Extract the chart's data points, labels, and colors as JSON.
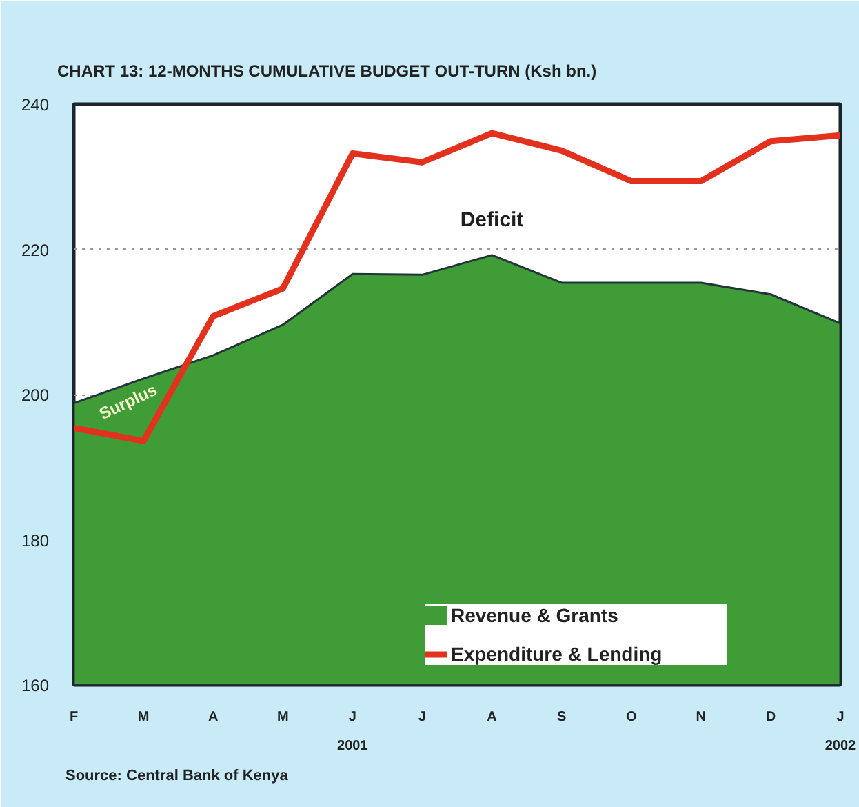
{
  "chart_data": {
    "type": "area",
    "title": "CHART 13: 12-MONTHS CUMULATIVE BUDGET OUT-TURN (Ksh bn.)",
    "categories": [
      "F",
      "M",
      "A",
      "M",
      "J",
      "J",
      "A",
      "S",
      "O",
      "N",
      "D",
      "J"
    ],
    "series": [
      {
        "name": "Revenue & Grants",
        "color": "#3f9c36",
        "values": [
          198.8,
          202.2,
          205.4,
          209.6,
          216.6,
          216.5,
          219.2,
          215.4,
          215.4,
          215.4,
          213.8,
          209.8
        ]
      },
      {
        "name": "Expenditure & Lending",
        "type": "line",
        "color": "#e2321e",
        "values": [
          195.4,
          193.6,
          210.8,
          214.6,
          233.2,
          232.0,
          236.0,
          233.6,
          229.4,
          229.4,
          234.9,
          235.7
        ]
      }
    ],
    "ylim": [
      160,
      240
    ],
    "yticks": [
      160,
      180,
      200,
      220,
      240
    ],
    "grid": "y",
    "legend": "bottom right",
    "annotations": [
      "Deficit",
      "Surplus",
      "2001",
      "2002",
      "Source: Central Bank of Kenya"
    ]
  }
}
